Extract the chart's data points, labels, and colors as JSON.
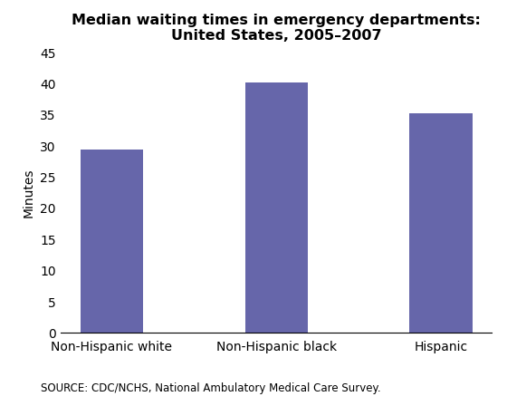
{
  "categories": [
    "Non-Hispanic white",
    "Non-Hispanic black",
    "Hispanic"
  ],
  "values": [
    29.5,
    40.2,
    35.3
  ],
  "bar_color": "#6666AA",
  "title_line1": "Median waiting times in emergency departments:",
  "title_line2": "United States, 2005–2007",
  "ylabel": "Minutes",
  "ylim": [
    0,
    45
  ],
  "yticks": [
    0,
    5,
    10,
    15,
    20,
    25,
    30,
    35,
    40,
    45
  ],
  "source_text": "SOURCE: CDC/NCHS, National Ambulatory Medical Care Survey.",
  "title_fontsize": 11.5,
  "ylabel_fontsize": 10,
  "tick_fontsize": 10,
  "source_fontsize": 8.5,
  "bar_width": 0.38
}
